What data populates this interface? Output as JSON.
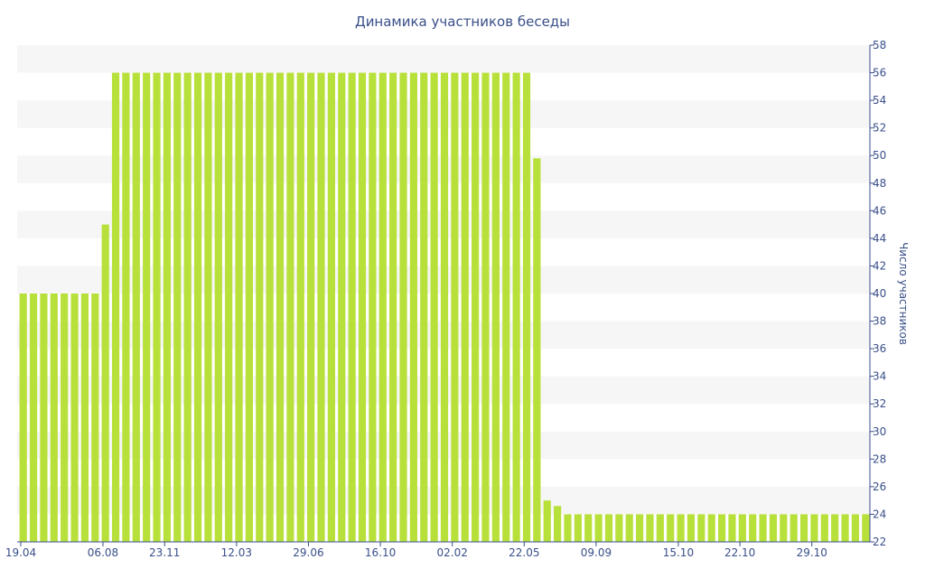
{
  "chart_data": {
    "type": "bar",
    "title": "Динамика участников беседы",
    "xlabel": "",
    "ylabel": "Число участников",
    "ylim": [
      22,
      58
    ],
    "y_ticks": [
      22,
      24,
      26,
      28,
      30,
      32,
      34,
      36,
      38,
      40,
      42,
      44,
      46,
      48,
      50,
      52,
      54,
      56,
      58
    ],
    "y_axis_position": "right",
    "x_tick_labels": [
      "19.04",
      "06.08",
      "23.11",
      "12.03",
      "29.06",
      "16.10",
      "02.02",
      "22.05",
      "09.09",
      "15.10",
      "22.10",
      "29.10"
    ],
    "x_tick_indices": [
      0,
      8,
      14,
      21,
      28,
      35,
      42,
      49,
      56,
      64,
      70,
      77
    ],
    "values": [
      40,
      40,
      40,
      40,
      40,
      40,
      40,
      40,
      45,
      56,
      56,
      56,
      56,
      56,
      56,
      56,
      56,
      56,
      56,
      56,
      56,
      56,
      56,
      56,
      56,
      56,
      56,
      56,
      56,
      56,
      56,
      56,
      56,
      56,
      56,
      56,
      56,
      56,
      56,
      56,
      56,
      56,
      56,
      56,
      56,
      56,
      56,
      56,
      56,
      56,
      49.8,
      25,
      24.6,
      24,
      24,
      24,
      24,
      24,
      24,
      24,
      24,
      24,
      24,
      24,
      24,
      24,
      24,
      24,
      24,
      24,
      24,
      24,
      24,
      24,
      24,
      24,
      24,
      24,
      24,
      24,
      24,
      24,
      24
    ],
    "grid": "horizontal bands",
    "colors": {
      "bar": "#b8e03a",
      "band": "#f6f6f6",
      "text": "#3a4f8a",
      "axis": "#3a4f8a"
    }
  }
}
